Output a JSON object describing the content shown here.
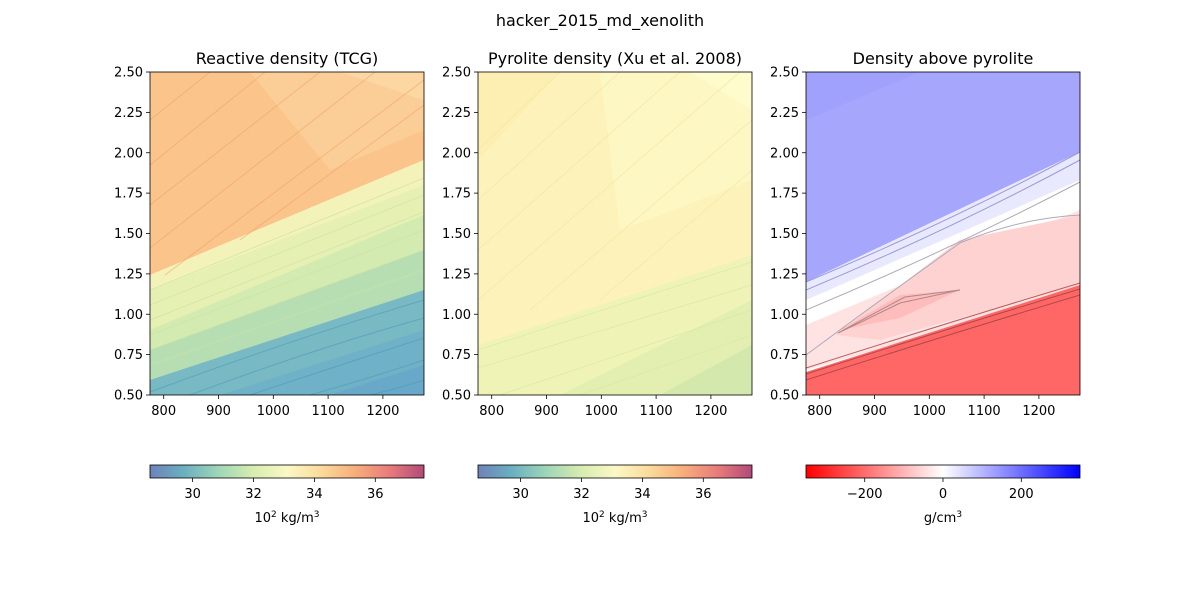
{
  "suptitle": "hacker_2015_md_xenolith",
  "chart_data": [
    {
      "type": "heatmap",
      "title": "Reactive density (TCG)",
      "x_ticks": [
        800,
        900,
        1000,
        1100,
        1200
      ],
      "y_ticks": [
        "0.50",
        "0.75",
        "1.00",
        "1.25",
        "1.50",
        "1.75",
        "2.00",
        "2.25",
        "2.50"
      ],
      "xlim": [
        775,
        1275
      ],
      "ylim": [
        0.5,
        2.5
      ],
      "colormap": "Spectral_r",
      "colorbar": {
        "ticks": [
          "30",
          "32",
          "34",
          "36"
        ],
        "range": [
          28.6,
          37.6
        ],
        "label_base": "10",
        "label_exp": "2",
        "label_unit": " kg/m",
        "label_unit_exp": "3"
      }
    },
    {
      "type": "heatmap",
      "title": "Pyrolite density (Xu et al. 2008)",
      "x_ticks": [
        800,
        900,
        1000,
        1100,
        1200
      ],
      "y_ticks": [
        "0.50",
        "0.75",
        "1.00",
        "1.25",
        "1.50",
        "1.75",
        "2.00",
        "2.25",
        "2.50"
      ],
      "xlim": [
        775,
        1275
      ],
      "ylim": [
        0.5,
        2.5
      ],
      "colormap": "Spectral_r",
      "colorbar": {
        "ticks": [
          "30",
          "32",
          "34",
          "36"
        ],
        "range": [
          28.6,
          37.6
        ],
        "label_base": "10",
        "label_exp": "2",
        "label_unit": " kg/m",
        "label_unit_exp": "3"
      }
    },
    {
      "type": "heatmap",
      "title": "Density above pyrolite",
      "x_ticks": [
        800,
        900,
        1000,
        1100,
        1200
      ],
      "y_ticks": [
        "0.50",
        "0.75",
        "1.00",
        "1.25",
        "1.50",
        "1.75",
        "2.00",
        "2.25",
        "2.50"
      ],
      "xlim": [
        775,
        1275
      ],
      "ylim": [
        0.5,
        2.5
      ],
      "colormap": "bwr_r",
      "colorbar": {
        "ticks": [
          "−200",
          "0",
          "200"
        ],
        "range": [
          -350,
          350
        ],
        "label_base": "g/cm",
        "label_exp": "3"
      }
    }
  ]
}
